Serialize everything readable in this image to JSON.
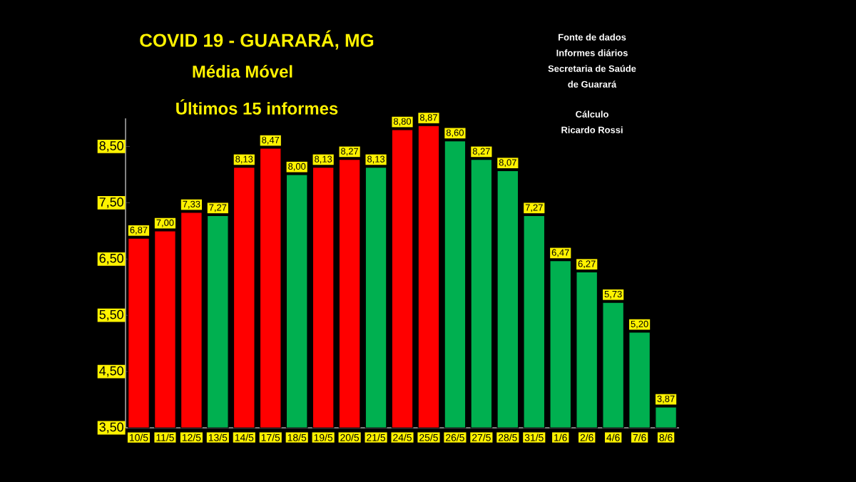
{
  "chart_data": {
    "type": "bar",
    "title": "COVID 19 - GUARARÁ, MG",
    "subtitle": "Média   Móvel",
    "annotations": [
      "Últimos  15  informes",
      "Fonte de dados",
      "Informes diários",
      "Secretaria de Saúde",
      "de Guarará",
      "Cálculo",
      "Ricardo Rossi"
    ],
    "categories": [
      "10/5",
      "11/5",
      "12/5",
      "13/5",
      "14/5",
      "17/5",
      "18/5",
      "19/5",
      "20/5",
      "21/5",
      "24/5",
      "25/5",
      "26/5",
      "27/5",
      "28/5",
      "31/5",
      "1/6",
      "2/6",
      "4/6",
      "7/6",
      "8/6"
    ],
    "values": [
      6.87,
      7.0,
      7.33,
      7.27,
      8.13,
      8.47,
      8.0,
      8.13,
      8.27,
      8.13,
      8.8,
      8.87,
      8.6,
      8.27,
      8.07,
      7.27,
      6.47,
      6.27,
      5.73,
      5.2,
      3.87
    ],
    "value_labels": [
      "6,87",
      "7,00",
      "7,33",
      "7,27",
      "8,13",
      "8,47",
      "8,00",
      "8,13",
      "8,27",
      "8,13",
      "8,80",
      "8,87",
      "8,60",
      "8,27",
      "8,07",
      "7,27",
      "6,47",
      "6,27",
      "5,73",
      "5,20",
      "3,87"
    ],
    "colors": [
      "#ff0000",
      "#ff0000",
      "#ff0000",
      "#00b050",
      "#ff0000",
      "#ff0000",
      "#00b050",
      "#ff0000",
      "#ff0000",
      "#00b050",
      "#ff0000",
      "#ff0000",
      "#00b050",
      "#00b050",
      "#00b050",
      "#00b050",
      "#00b050",
      "#00b050",
      "#00b050",
      "#00b050",
      "#00b050"
    ],
    "ylim": [
      3.5,
      9.0
    ],
    "yticks": [
      {
        "value": 3.5,
        "label": "3,50"
      },
      {
        "value": 4.5,
        "label": "4,50"
      },
      {
        "value": 5.5,
        "label": "5,50"
      },
      {
        "value": 6.5,
        "label": "6,50"
      },
      {
        "value": 7.5,
        "label": "7,50"
      },
      {
        "value": 8.5,
        "label": "8,50"
      }
    ],
    "grid": false
  }
}
